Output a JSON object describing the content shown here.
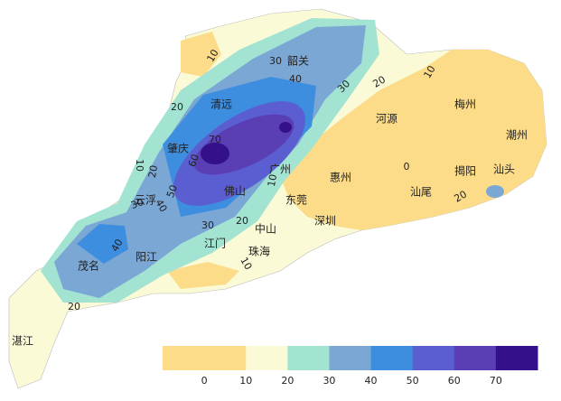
{
  "map": {
    "cities": [
      "韶关",
      "清远",
      "河源",
      "梅州",
      "潮州",
      "肇庆",
      "广州",
      "惠州",
      "揭阳",
      "汕头",
      "云浮",
      "佛山",
      "东莞",
      "汕尾",
      "深圳",
      "中山",
      "江门",
      "珠海",
      "阳江",
      "茂名",
      "湛江"
    ],
    "contour_labels": [
      "10",
      "30",
      "40",
      "30",
      "20",
      "10",
      "20",
      "70",
      "60",
      "10",
      "20",
      "50",
      "40",
      "30",
      "30",
      "20",
      "10",
      "0",
      "20",
      "40",
      "20",
      "10"
    ]
  },
  "legend": {
    "colors": [
      "#fcdc88",
      "#fcdc88",
      "#fbfad6",
      "#a2e3d2",
      "#7ba7d4",
      "#3e8ee0",
      "#5a5ed0",
      "#5a3eb4",
      "#34108a"
    ],
    "labels": [
      "0",
      "10",
      "20",
      "30",
      "40",
      "50",
      "60",
      "70"
    ]
  }
}
